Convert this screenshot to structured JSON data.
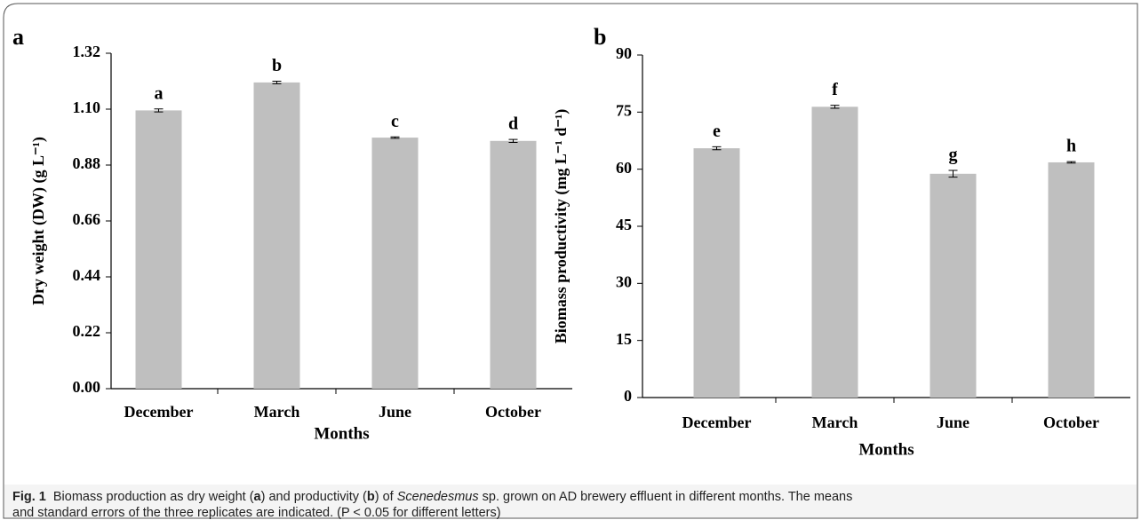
{
  "chart_data": [
    {
      "type": "bar",
      "panel": "a",
      "y_label": "Dry weight (DW) (g L⁻¹)",
      "x_label": "Months",
      "categories": [
        "December",
        "March",
        "June",
        "October"
      ],
      "values": [
        1.095,
        1.205,
        0.988,
        0.975
      ],
      "errors": [
        0.006,
        0.005,
        0.003,
        0.006
      ],
      "annotations": [
        "a",
        "b",
        "c",
        "d"
      ],
      "color": "#bfbfbf",
      "ylim": [
        0,
        1.32
      ],
      "yticks": [
        {
          "value": 0,
          "label": "0.00"
        },
        0.22,
        0.44,
        0.66,
        0.88,
        {
          "value": 1.1,
          "label": "1.10"
        },
        1.32
      ]
    },
    {
      "type": "bar",
      "panel": "b",
      "y_label": "Biomass productivity (mg L⁻¹ d⁻¹)",
      "x_label": "Months",
      "categories": [
        "December",
        "March",
        "June",
        "October"
      ],
      "values": [
        65.5,
        76.4,
        58.8,
        61.8
      ],
      "errors": [
        0.4,
        0.4,
        0.9,
        0.2
      ],
      "annotations": [
        "e",
        "f",
        "g",
        "h"
      ],
      "color": "#bfbfbf",
      "ylim": [
        0,
        90
      ],
      "yticks": [
        0,
        15,
        30,
        45,
        60,
        75,
        90
      ]
    }
  ],
  "caption": {
    "label": "Fig. 1",
    "parts": [
      "Biomass production as dry weight (",
      "a",
      ") and productivity (",
      "b",
      ") of ",
      "Scenedesmus",
      " sp. grown on AD brewery effluent in different months. The means",
      "and standard errors of the three replicates are indicated. (P < 0.05 for different letters)"
    ]
  }
}
